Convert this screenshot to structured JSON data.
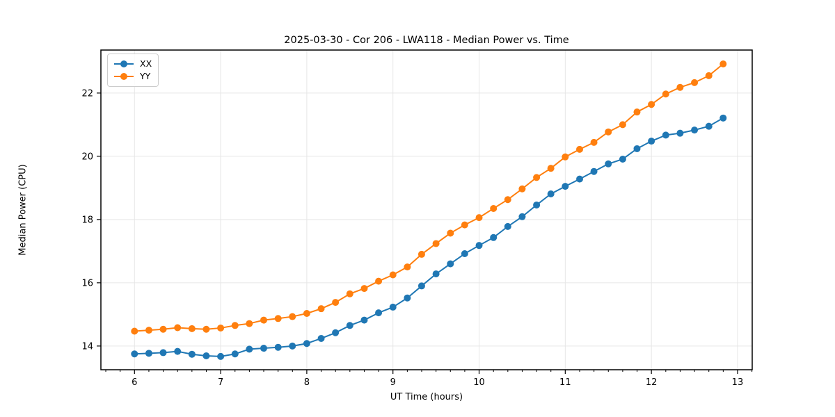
{
  "chart": {
    "title": "2025-03-30 - Cor 206 - LWA118 - Median Power vs. Time",
    "xlabel": "UT Time (hours)",
    "ylabel": "Median Power (CPU)"
  },
  "chart_data": {
    "type": "line",
    "title": "2025-03-30 - Cor 206 - LWA118 - Median Power vs. Time",
    "xlabel": "UT Time (hours)",
    "ylabel": "Median Power (CPU)",
    "xlim": [
      5.61,
      13.17
    ],
    "ylim": [
      13.25,
      23.36
    ],
    "x_ticks": [
      6,
      7,
      8,
      9,
      10,
      11,
      12,
      13
    ],
    "x_tick_labels": [
      "6",
      "7",
      "8",
      "9",
      "10",
      "11",
      "12",
      "13"
    ],
    "x_minor_tick_interval": 0.16667,
    "y_ticks": [
      14,
      16,
      18,
      20,
      22
    ],
    "y_tick_labels": [
      "14",
      "16",
      "18",
      "20",
      "22"
    ],
    "grid": true,
    "grid_color": "#e6e6e6",
    "legend_position": "upper-left",
    "marker": "o",
    "x": [
      6.0,
      6.167,
      6.333,
      6.5,
      6.667,
      6.833,
      7.0,
      7.167,
      7.333,
      7.5,
      7.667,
      7.833,
      8.0,
      8.167,
      8.333,
      8.5,
      8.667,
      8.833,
      9.0,
      9.167,
      9.333,
      9.5,
      9.667,
      9.833,
      10.0,
      10.167,
      10.333,
      10.5,
      10.667,
      10.833,
      11.0,
      11.167,
      11.333,
      11.5,
      11.667,
      11.833,
      12.0,
      12.167,
      12.333,
      12.5,
      12.667,
      12.833
    ],
    "series": [
      {
        "name": "XX",
        "color": "#1f77b4",
        "values": [
          13.75,
          13.77,
          13.79,
          13.83,
          13.74,
          13.69,
          13.67,
          13.75,
          13.9,
          13.93,
          13.96,
          14.0,
          14.08,
          14.24,
          14.42,
          14.65,
          14.82,
          15.05,
          15.23,
          15.52,
          15.9,
          16.28,
          16.6,
          16.92,
          17.18,
          17.43,
          17.78,
          18.09,
          18.46,
          18.81,
          19.05,
          19.28,
          19.52,
          19.76,
          19.91,
          20.24,
          20.48,
          20.67,
          20.73,
          20.83,
          20.95,
          21.21
        ]
      },
      {
        "name": "YY",
        "color": "#ff7f0e",
        "values": [
          14.47,
          14.5,
          14.53,
          14.58,
          14.55,
          14.53,
          14.57,
          14.65,
          14.71,
          14.82,
          14.87,
          14.93,
          15.03,
          15.18,
          15.38,
          15.65,
          15.82,
          16.05,
          16.25,
          16.5,
          16.9,
          17.24,
          17.57,
          17.83,
          18.06,
          18.35,
          18.63,
          18.97,
          19.33,
          19.62,
          19.98,
          20.22,
          20.44,
          20.77,
          21.0,
          21.4,
          21.64,
          21.97,
          22.18,
          22.33,
          22.55,
          22.92
        ]
      }
    ]
  }
}
